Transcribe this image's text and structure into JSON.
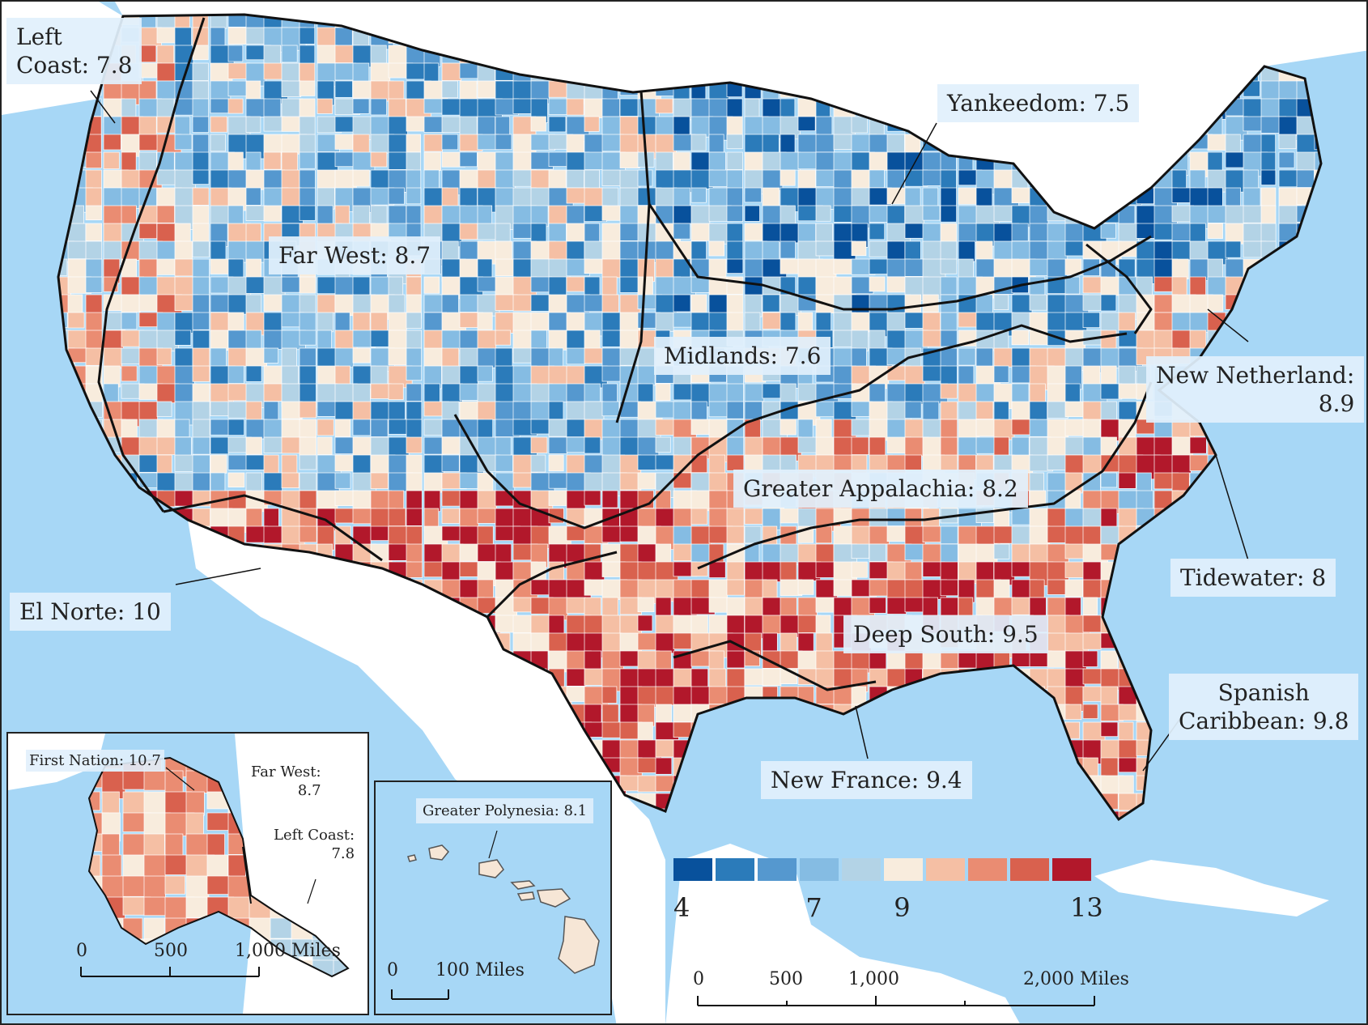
{
  "regions": [
    {
      "key": "left_coast",
      "name": "Left Coast",
      "value": "7.8",
      "label": "Left Coast: 7.8",
      "color": "#f4c7b0"
    },
    {
      "key": "far_west",
      "name": "Far West",
      "value": "8.7",
      "label": "Far West: 8.7",
      "color": "#f1b59b"
    },
    {
      "key": "yankeedom",
      "name": "Yankeedom",
      "value": "7.5",
      "label": "Yankeedom: 7.5",
      "color": "#6baed6"
    },
    {
      "key": "midlands",
      "name": "Midlands",
      "value": "7.6",
      "label": "Midlands: 7.6",
      "color": "#76b4dc"
    },
    {
      "key": "new_netherland",
      "name": "New Netherland",
      "value": "8.9",
      "label": "New Netherland: 8.9",
      "color": "#f1b79f"
    },
    {
      "key": "greater_appalachia",
      "name": "Greater Appalachia",
      "value": "8.2",
      "label": "Greater Appalachia: 8.2",
      "color": "#f7e3d3"
    },
    {
      "key": "tidewater",
      "name": "Tidewater",
      "value": "8",
      "label": "Tidewater: 8",
      "color": "#f4d5c3"
    },
    {
      "key": "el_norte",
      "name": "El Norte",
      "value": "10",
      "label": "El Norte: 10",
      "color": "#e06f55"
    },
    {
      "key": "deep_south",
      "name": "Deep South",
      "value": "9.5",
      "label": "Deep South: 9.5",
      "color": "#e58d74"
    },
    {
      "key": "spanish_caribbean",
      "name": "Spanish Caribbean",
      "value": "9.8",
      "label": "Spanish Caribbean: 9.8",
      "color": "#e37d63"
    },
    {
      "key": "new_france",
      "name": "New France",
      "value": "9.4",
      "label": "New France: 9.4",
      "color": "#e89a82"
    },
    {
      "key": "first_nation",
      "name": "First Nation",
      "value": "10.7",
      "label": "First Nation: 10.7",
      "color": "#d9574a"
    },
    {
      "key": "greater_polynesia",
      "name": "Greater Polynesia",
      "value": "8.1",
      "label": "Greater Polynesia: 8.1",
      "color": "#f6e6d6"
    }
  ],
  "labels": {
    "left_coast_line1": "Left",
    "left_coast_line2": "Coast: 7.8",
    "yankeedom": "Yankeedom: 7.5",
    "far_west": "Far West: 8.7",
    "midlands": "Midlands: 7.6",
    "new_netherland_line1": "New Netherland:",
    "new_netherland_line2": "8.9",
    "greater_appalachia": "Greater Appalachia: 8.2",
    "tidewater": "Tidewater: 8",
    "el_norte": "El Norte: 10",
    "deep_south": "Deep South: 9.5",
    "spanish_caribbean_line1": "Spanish",
    "spanish_caribbean_line2": "Caribbean: 9.8",
    "new_france": "New France: 9.4"
  },
  "alaska_inset": {
    "first_nation": "First Nation: 10.7",
    "far_west_line1": "Far West:",
    "far_west_line2": "8.7",
    "left_coast_line1": "Left Coast:",
    "left_coast_line2": "7.8",
    "scale_ticks": [
      "0",
      "500",
      "1,000 Miles"
    ]
  },
  "hawaii_inset": {
    "greater_polynesia": "Greater Polynesia: 8.1",
    "scale_ticks": [
      "0",
      "100 Miles"
    ]
  },
  "main_scale": {
    "ticks": [
      "0",
      "500",
      "1,000",
      "2,000 Miles"
    ]
  },
  "legend": {
    "min": 4,
    "max": 13,
    "tick_labels": [
      "4",
      "7",
      "9",
      "13"
    ],
    "tick_values": [
      4,
      7,
      9,
      13
    ],
    "colors": [
      "#08519c",
      "#2b7bba",
      "#5598cf",
      "#85bce3",
      "#b3d3e6",
      "#f8ecdd",
      "#f5bfa4",
      "#ea8c72",
      "#d9614e",
      "#b2182b"
    ]
  },
  "colors": {
    "ocean": "#a7d7f6",
    "land_outside": "#ffffff",
    "border": "#111111"
  }
}
